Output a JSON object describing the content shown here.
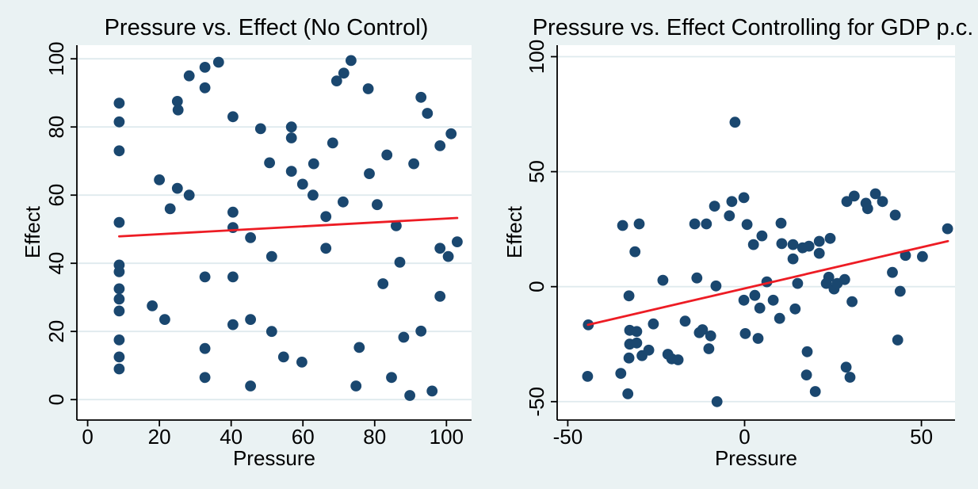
{
  "colors": {
    "background": "#eaf2f3",
    "plot_background": "#ffffff",
    "grid": "#dfeaee",
    "axis": "#000000",
    "point": "#1a476f",
    "fit_line": "#ed1c24"
  },
  "chart_data": [
    {
      "type": "scatter",
      "title": "Pressure vs. Effect (No Control)",
      "xlabel": "Pressure",
      "ylabel": "Effect",
      "xlim": [
        -3,
        107
      ],
      "ylim": [
        -6,
        104
      ],
      "xticks": [
        0,
        20,
        40,
        60,
        80,
        100
      ],
      "yticks": [
        0,
        20,
        40,
        60,
        80,
        100
      ],
      "grid": "horizontal-y",
      "legend": "none",
      "point_color": "#1a476f",
      "fit_line": {
        "color": "#ed1c24",
        "x": [
          8.8,
          103
        ],
        "y": [
          47.9,
          53.3
        ]
      },
      "points": [
        [
          8.8,
          87
        ],
        [
          8.8,
          81.5
        ],
        [
          8.8,
          73
        ],
        [
          8.8,
          52
        ],
        [
          8.8,
          39.5
        ],
        [
          8.8,
          37.5
        ],
        [
          8.8,
          32.5
        ],
        [
          8.8,
          29.5
        ],
        [
          8.8,
          26
        ],
        [
          8.8,
          17.5
        ],
        [
          8.8,
          12.5
        ],
        [
          8.8,
          9
        ],
        [
          18,
          27.5
        ],
        [
          20,
          64.5
        ],
        [
          21.5,
          23.5
        ],
        [
          23,
          56
        ],
        [
          25,
          87.5
        ],
        [
          25.2,
          85
        ],
        [
          25,
          62
        ],
        [
          28.3,
          60
        ],
        [
          28.3,
          95
        ],
        [
          32.7,
          97.5
        ],
        [
          36.5,
          99
        ],
        [
          32.7,
          91.5
        ],
        [
          32.7,
          36
        ],
        [
          32.7,
          15
        ],
        [
          32.7,
          6.5
        ],
        [
          40.5,
          83
        ],
        [
          40.5,
          55
        ],
        [
          40.5,
          50.5
        ],
        [
          40.5,
          36
        ],
        [
          40.5,
          22
        ],
        [
          45.4,
          47.5
        ],
        [
          45.4,
          23.5
        ],
        [
          45.4,
          4
        ],
        [
          48.2,
          79.5
        ],
        [
          50.7,
          69.5
        ],
        [
          51.3,
          42
        ],
        [
          51.3,
          20
        ],
        [
          54.6,
          12.5
        ],
        [
          56.8,
          80
        ],
        [
          56.8,
          76.8
        ],
        [
          56.8,
          67
        ],
        [
          59.9,
          63.2
        ],
        [
          59.7,
          11
        ],
        [
          62.8,
          60
        ],
        [
          63,
          69.2
        ],
        [
          66.4,
          53.7
        ],
        [
          66.4,
          44.4
        ],
        [
          68.3,
          75.3
        ],
        [
          69.4,
          93.5
        ],
        [
          71.4,
          95.8
        ],
        [
          73.4,
          99.5
        ],
        [
          71.2,
          58
        ],
        [
          74.8,
          4
        ],
        [
          75.7,
          15.3
        ],
        [
          78.2,
          91.2
        ],
        [
          78.5,
          66.3
        ],
        [
          80.7,
          57.2
        ],
        [
          82.3,
          34
        ],
        [
          83.4,
          71.8
        ],
        [
          84.7,
          6.5
        ],
        [
          86,
          51
        ],
        [
          87,
          40.3
        ],
        [
          88.1,
          18.3
        ],
        [
          89.8,
          1.2
        ],
        [
          90.9,
          69.2
        ],
        [
          92.9,
          88.7
        ],
        [
          92.9,
          20.1
        ],
        [
          94.7,
          84
        ],
        [
          96,
          2.5
        ],
        [
          98.2,
          44.4
        ],
        [
          98.2,
          30.3
        ],
        [
          100.5,
          42
        ],
        [
          103,
          46.3
        ],
        [
          98.2,
          74.5
        ],
        [
          101.3,
          78
        ]
      ]
    },
    {
      "type": "scatter",
      "title": "Pressure vs. Effect Controlling for GDP p.c.",
      "xlabel": "Pressure",
      "ylabel": "Effect",
      "xlim": [
        -53,
        59.5
      ],
      "ylim": [
        -58,
        105
      ],
      "xticks": [
        -50,
        0,
        50
      ],
      "yticks": [
        -50,
        0,
        50,
        100
      ],
      "grid": "horizontal-y",
      "legend": "none",
      "point_color": "#1a476f",
      "fit_line": {
        "color": "#ed1c24",
        "x": [
          -44.3,
          57.5
        ],
        "y": [
          -16.6,
          19.8
        ]
      },
      "points": [
        [
          -44.2,
          -16.6
        ],
        [
          -44.4,
          -39
        ],
        [
          -35,
          -37.7
        ],
        [
          -34.5,
          26.6
        ],
        [
          -33,
          -46.6
        ],
        [
          -32.7,
          -4
        ],
        [
          -32.5,
          -19
        ],
        [
          -30.5,
          -19.5
        ],
        [
          -32.5,
          -25
        ],
        [
          -30.5,
          -24.5
        ],
        [
          -32.7,
          -31
        ],
        [
          -31,
          15.2
        ],
        [
          -29.8,
          27.3
        ],
        [
          -29,
          -30
        ],
        [
          -27.1,
          -27.6
        ],
        [
          -25.8,
          -16.2
        ],
        [
          -23.1,
          2.8
        ],
        [
          -21.7,
          -29.4
        ],
        [
          -20.6,
          -31.4
        ],
        [
          -18.8,
          -31.8
        ],
        [
          -16.8,
          -15
        ],
        [
          -14.1,
          27.3
        ],
        [
          -13.5,
          3.8
        ],
        [
          -12.8,
          -20
        ],
        [
          -11.9,
          -18.7
        ],
        [
          -10.8,
          27.3
        ],
        [
          -10.1,
          -27
        ],
        [
          -9.6,
          -21.4
        ],
        [
          -8.5,
          35
        ],
        [
          -8.1,
          0.3
        ],
        [
          -7.8,
          -50
        ],
        [
          -4.3,
          30.8
        ],
        [
          -3.6,
          37
        ],
        [
          -2.7,
          71.5
        ],
        [
          -0.2,
          38.7
        ],
        [
          -0.2,
          -5.9
        ],
        [
          0.2,
          -20.4
        ],
        [
          0.7,
          27
        ],
        [
          2.5,
          18.3
        ],
        [
          2.9,
          -3.8
        ],
        [
          3.8,
          -22.5
        ],
        [
          4.3,
          -9.3
        ],
        [
          4.9,
          22.1
        ],
        [
          6.3,
          2.1
        ],
        [
          8.1,
          -5.9
        ],
        [
          9.9,
          -13.8
        ],
        [
          10.3,
          27.6
        ],
        [
          10.5,
          18.7
        ],
        [
          13.7,
          18.3
        ],
        [
          13.7,
          12.1
        ],
        [
          14.3,
          -9.7
        ],
        [
          15,
          1.4
        ],
        [
          16.4,
          16.9
        ],
        [
          18.2,
          17.6
        ],
        [
          17.7,
          -28.3
        ],
        [
          17.5,
          -38.4
        ],
        [
          20,
          -45.6
        ],
        [
          21.1,
          19.7
        ],
        [
          21.1,
          14.5
        ],
        [
          24.2,
          21
        ],
        [
          23.8,
          4.1
        ],
        [
          23.1,
          1.4
        ],
        [
          25.3,
          -1
        ],
        [
          26.2,
          1.4
        ],
        [
          28.3,
          3.1
        ],
        [
          28.9,
          37
        ],
        [
          31,
          39.4
        ],
        [
          30.4,
          -6.5
        ],
        [
          28.7,
          -35
        ],
        [
          29.8,
          -39.4
        ],
        [
          34.3,
          36.3
        ],
        [
          34.8,
          33.9
        ],
        [
          37,
          40.4
        ],
        [
          39,
          37
        ],
        [
          41.8,
          6.2
        ],
        [
          42.6,
          31.1
        ],
        [
          43.3,
          -23.2
        ],
        [
          44,
          -2
        ],
        [
          45.5,
          13.6
        ],
        [
          50.3,
          13.1
        ],
        [
          57.4,
          25.2
        ]
      ]
    }
  ]
}
